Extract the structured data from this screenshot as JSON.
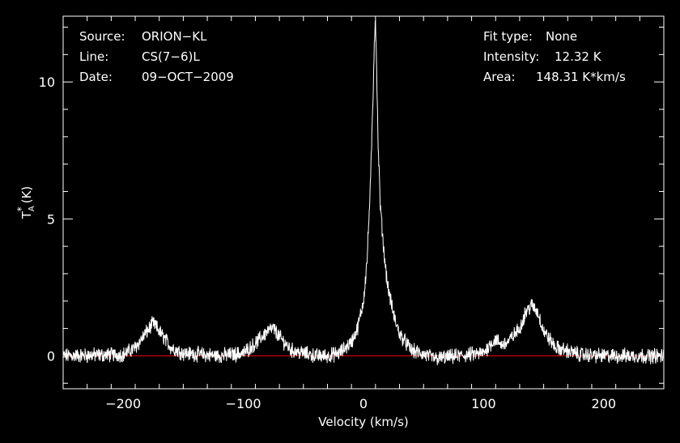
{
  "chart_data": {
    "type": "line",
    "xlabel": "Velocity (km/s)",
    "ylabel": "T",
    "ylabel_sub": "A",
    "ylabel_sup": "*",
    "ylabel_unit": "(K)",
    "xlim": [
      -250,
      250
    ],
    "ylim": [
      -1.2,
      12.4
    ],
    "x_ticks": [
      -200,
      -100,
      0,
      100,
      200
    ],
    "x_tick_labels": [
      "−200",
      "−100",
      "0",
      "100",
      "200"
    ],
    "y_ticks": [
      0,
      5,
      10
    ],
    "y_tick_labels": [
      "0",
      "5",
      "10"
    ],
    "baseline": 0,
    "colors": {
      "background": "#000000",
      "line": "#ffffff",
      "baseline": "#cc0000"
    },
    "series": [
      {
        "x": [
          -250,
          -200,
          -190,
          -180,
          -175,
          -170,
          -160,
          -150,
          -120,
          -100,
          -90,
          -80,
          -75,
          -70,
          -60,
          -50,
          -45,
          -40,
          -30,
          -20,
          -10,
          -5,
          0,
          3,
          6,
          8,
          9,
          10,
          11,
          12,
          14,
          17,
          20,
          25,
          30,
          40,
          60,
          80,
          100,
          105,
          110,
          115,
          120,
          130,
          135,
          140,
          145,
          150,
          160,
          180,
          200,
          250
        ],
        "y": [
          0,
          0.05,
          0.3,
          0.9,
          1.2,
          0.9,
          0.3,
          0.1,
          0,
          0.1,
          0.45,
          0.9,
          1.0,
          0.7,
          0.2,
          0.1,
          0.05,
          0,
          0,
          0.1,
          0.5,
          1.0,
          2.0,
          3.5,
          6.5,
          9.5,
          11.5,
          12.32,
          10.5,
          8.0,
          5.5,
          3.8,
          2.6,
          1.5,
          0.8,
          0.2,
          -0.1,
          0,
          0.1,
          0.4,
          0.6,
          0.4,
          0.5,
          1.0,
          1.6,
          1.85,
          1.6,
          0.9,
          0.3,
          0.05,
          0,
          0
        ]
      }
    ]
  },
  "info": {
    "source_label": "Source:",
    "source_value": "ORION−KL",
    "line_label": "Line:",
    "line_value": "CS(7−6)L",
    "date_label": "Date:",
    "date_value": "09−OCT−2009",
    "fit_type_label": "Fit type:",
    "fit_type_value": "None",
    "intensity_label": "Intensity:",
    "intensity_value": "12.32 K",
    "area_label": "Area:",
    "area_value": "148.31 K*km/s"
  }
}
